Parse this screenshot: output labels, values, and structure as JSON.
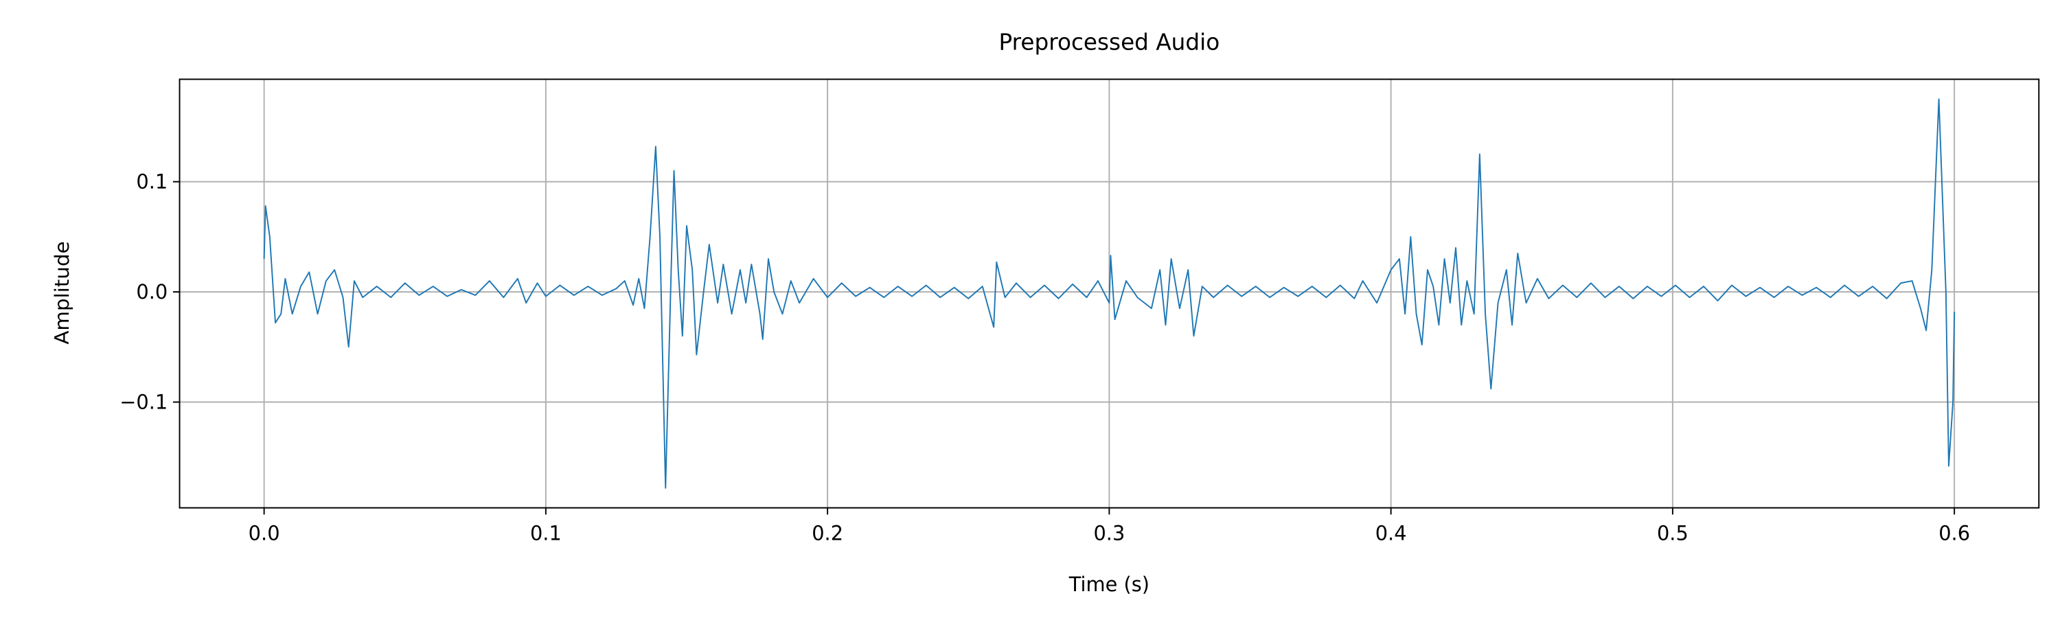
{
  "chart_data": {
    "type": "line",
    "title": "Preprocessed Audio",
    "x_label": "Time (s)",
    "y_label": "Amplitude",
    "color": "#1f77b4",
    "grid": true,
    "xlim": [
      -0.03,
      0.63
    ],
    "ylim": [
      -0.196,
      0.193
    ],
    "xticks": [
      {
        "value": 0,
        "label": "0.0"
      },
      0.1,
      0.2,
      0.3,
      0.4,
      0.5,
      0.6
    ],
    "yticks": [
      {
        "value": -0.1,
        "label": "−0.1"
      },
      {
        "value": 0,
        "label": "0.0"
      },
      0.1
    ],
    "x": [
      0,
      0.0005,
      0.002,
      0.004,
      0.006,
      0.0075,
      0.01,
      0.013,
      0.016,
      0.019,
      0.022,
      0.025,
      0.028,
      0.03,
      0.032,
      0.035,
      0.04,
      0.045,
      0.05,
      0.055,
      0.06,
      0.065,
      0.07,
      0.075,
      0.08,
      0.085,
      0.09,
      0.093,
      0.097,
      0.1,
      0.105,
      0.11,
      0.115,
      0.12,
      0.125,
      0.128,
      0.131,
      0.133,
      0.135,
      0.137,
      0.139,
      0.1405,
      0.1425,
      0.1445,
      0.1455,
      0.147,
      0.1485,
      0.15,
      0.152,
      0.1535,
      0.156,
      0.158,
      0.161,
      0.163,
      0.166,
      0.169,
      0.171,
      0.173,
      0.176,
      0.177,
      0.179,
      0.181,
      0.184,
      0.187,
      0.19,
      0.195,
      0.2,
      0.205,
      0.21,
      0.215,
      0.22,
      0.225,
      0.23,
      0.235,
      0.24,
      0.245,
      0.25,
      0.255,
      0.259,
      0.26,
      0.263,
      0.267,
      0.272,
      0.277,
      0.282,
      0.287,
      0.292,
      0.296,
      0.3,
      0.3005,
      0.302,
      0.306,
      0.31,
      0.315,
      0.318,
      0.32,
      0.322,
      0.325,
      0.328,
      0.33,
      0.333,
      0.337,
      0.342,
      0.347,
      0.352,
      0.357,
      0.362,
      0.367,
      0.372,
      0.377,
      0.382,
      0.387,
      0.39,
      0.395,
      0.4,
      0.403,
      0.405,
      0.407,
      0.409,
      0.411,
      0.413,
      0.415,
      0.417,
      0.419,
      0.421,
      0.423,
      0.425,
      0.427,
      0.4295,
      0.4315,
      0.4335,
      0.4355,
      0.438,
      0.441,
      0.443,
      0.445,
      0.448,
      0.452,
      0.456,
      0.461,
      0.466,
      0.471,
      0.476,
      0.481,
      0.486,
      0.491,
      0.496,
      0.501,
      0.506,
      0.511,
      0.516,
      0.521,
      0.526,
      0.531,
      0.536,
      0.541,
      0.546,
      0.551,
      0.556,
      0.561,
      0.566,
      0.571,
      0.576,
      0.581,
      0.585,
      0.588,
      0.59,
      0.592,
      0.5945,
      0.597,
      0.598,
      0.5995,
      0.6
    ],
    "values": [
      0.03,
      0.078,
      0.05,
      -0.028,
      -0.02,
      0.012,
      -0.02,
      0.005,
      0.018,
      -0.02,
      0.01,
      0.02,
      -0.005,
      -0.05,
      0.01,
      -0.005,
      0.005,
      -0.005,
      0.008,
      -0.003,
      0.005,
      -0.004,
      0.002,
      -0.003,
      0.01,
      -0.005,
      0.012,
      -0.01,
      0.008,
      -0.004,
      0.006,
      -0.003,
      0.005,
      -0.003,
      0.003,
      0.01,
      -0.012,
      0.012,
      -0.015,
      0.05,
      0.132,
      0.05,
      -0.178,
      0.02,
      0.11,
      0.02,
      -0.04,
      0.06,
      0.02,
      -0.057,
      0,
      0.043,
      -0.01,
      0.025,
      -0.02,
      0.02,
      -0.01,
      0.025,
      -0.02,
      -0.043,
      0.03,
      0,
      -0.02,
      0.01,
      -0.01,
      0.012,
      -0.005,
      0.008,
      -0.004,
      0.004,
      -0.005,
      0.005,
      -0.004,
      0.006,
      -0.005,
      0.004,
      -0.006,
      0.005,
      -0.032,
      0.027,
      -0.005,
      0.008,
      -0.005,
      0.006,
      -0.006,
      0.007,
      -0.005,
      0.01,
      -0.01,
      0.033,
      -0.025,
      0.01,
      -0.005,
      -0.015,
      0.02,
      -0.03,
      0.03,
      -0.015,
      0.02,
      -0.04,
      0.005,
      -0.005,
      0.006,
      -0.004,
      0.005,
      -0.005,
      0.004,
      -0.004,
      0.005,
      -0.005,
      0.006,
      -0.006,
      0.01,
      -0.01,
      0.02,
      0.03,
      -0.02,
      0.05,
      -0.02,
      -0.048,
      0.02,
      0.005,
      -0.03,
      0.03,
      -0.01,
      0.04,
      -0.03,
      0.01,
      -0.02,
      0.125,
      -0.02,
      -0.088,
      -0.01,
      0.02,
      -0.03,
      0.035,
      -0.01,
      0.012,
      -0.006,
      0.006,
      -0.005,
      0.008,
      -0.005,
      0.005,
      -0.006,
      0.005,
      -0.004,
      0.006,
      -0.005,
      0.005,
      -0.008,
      0.006,
      -0.004,
      0.004,
      -0.005,
      0.005,
      -0.003,
      0.004,
      -0.005,
      0.006,
      -0.004,
      0.005,
      -0.006,
      0.008,
      0.01,
      -0.015,
      -0.035,
      0.02,
      0.175,
      0,
      -0.158,
      -0.1,
      -0.018
    ]
  }
}
